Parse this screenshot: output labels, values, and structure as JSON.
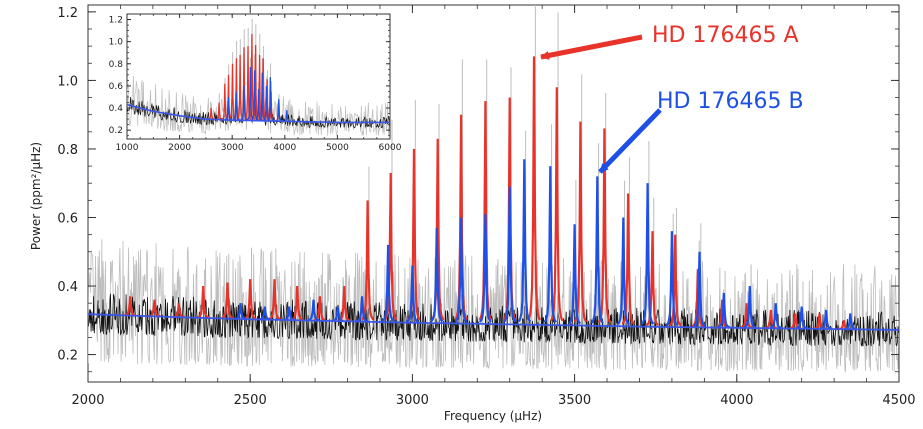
{
  "chart_data": [
    {
      "type": "line",
      "role": "main",
      "xlabel": "Frequency (μHz)",
      "ylabel": "Power (ppm²/μHz)",
      "xlim": [
        2000,
        4500
      ],
      "ylim": [
        0.12,
        1.22
      ],
      "xticks": [
        2000,
        2500,
        3000,
        3500,
        4000,
        4500
      ],
      "yticks": [
        0.2,
        0.4,
        0.6,
        0.8,
        1.0,
        1.2
      ],
      "ytick_labels": [
        "0.2",
        "0.4",
        "0.6",
        "0.8",
        "1.0",
        "1.2"
      ],
      "grid": false,
      "series": [
        {
          "name": "HD 176465 A",
          "color": "#e8332a",
          "x": [
            2130,
            2205,
            2280,
            2355,
            2430,
            2500,
            2575,
            2645,
            2715,
            2790,
            2862,
            2933,
            3005,
            3078,
            3150,
            3225,
            3300,
            3375,
            3445,
            3518,
            3592,
            3665,
            3740,
            3810,
            3880,
            3955,
            4030,
            4105,
            4180,
            4255,
            4330
          ],
          "values": [
            0.37,
            0.36,
            0.35,
            0.4,
            0.41,
            0.42,
            0.42,
            0.4,
            0.37,
            0.4,
            0.65,
            0.73,
            0.8,
            0.83,
            0.9,
            0.94,
            0.95,
            1.07,
            0.98,
            0.88,
            0.86,
            0.67,
            0.56,
            0.55,
            0.45,
            0.36,
            0.35,
            0.33,
            0.32,
            0.32,
            0.3
          ]
        },
        {
          "name": "HD 176465 B",
          "color": "#1e50e6",
          "x": [
            2470,
            2545,
            2620,
            2695,
            2770,
            2845,
            2925,
            3000,
            3075,
            3150,
            3225,
            3300,
            3345,
            3425,
            3500,
            3570,
            3650,
            3725,
            3800,
            3885,
            3960,
            4040,
            4120,
            4200,
            4275,
            4350
          ],
          "values": [
            0.35,
            0.34,
            0.34,
            0.36,
            0.34,
            0.37,
            0.52,
            0.46,
            0.57,
            0.6,
            0.61,
            0.69,
            0.77,
            0.75,
            0.58,
            0.72,
            0.6,
            0.7,
            0.56,
            0.5,
            0.38,
            0.4,
            0.35,
            0.34,
            0.33,
            0.32
          ]
        },
        {
          "name": "",
          "color": "#3a56e8",
          "role": "background-fit",
          "x": [
            2000,
            2250,
            2500,
            2750,
            3000,
            3250,
            3500,
            3750,
            4000,
            4250,
            4500
          ],
          "values": [
            0.318,
            0.31,
            0.303,
            0.298,
            0.293,
            0.289,
            0.285,
            0.281,
            0.278,
            0.275,
            0.272
          ]
        }
      ],
      "annotations": [
        {
          "text": "HD 176465 A",
          "color": "#e8332a",
          "points_to": [
            3375,
            1.07
          ]
        },
        {
          "text": "HD 176465 B",
          "color": "#1e50e6",
          "points_to": [
            3570,
            0.72
          ]
        }
      ]
    },
    {
      "type": "line",
      "role": "inset",
      "xlim": [
        1000,
        6000
      ],
      "ylim": [
        0.12,
        1.25
      ],
      "xticks": [
        1000,
        2000,
        3000,
        4000,
        5000,
        6000
      ],
      "yticks": [
        0.2,
        0.4,
        0.6,
        0.8,
        1.0,
        1.2
      ],
      "ytick_labels": [
        "0.2",
        "0.4",
        "0.6",
        "0.8",
        "1.0",
        "1.2"
      ],
      "series": [
        {
          "name": "HD 176465 A",
          "color": "#e8332a",
          "x": [
            2600,
            2750,
            2860,
            2930,
            3005,
            3080,
            3150,
            3225,
            3300,
            3375,
            3445,
            3520,
            3590,
            3665,
            3740,
            3880
          ],
          "values": [
            0.4,
            0.45,
            0.62,
            0.7,
            0.8,
            0.85,
            0.88,
            0.95,
            0.96,
            1.07,
            0.97,
            0.88,
            0.85,
            0.66,
            0.55,
            0.45
          ]
        },
        {
          "name": "HD 176465 B",
          "color": "#1e50e6",
          "x": [
            2925,
            3075,
            3225,
            3345,
            3425,
            3500,
            3570,
            3650,
            3725,
            3885,
            4040
          ],
          "values": [
            0.5,
            0.55,
            0.6,
            0.77,
            0.74,
            0.57,
            0.72,
            0.6,
            0.68,
            0.48,
            0.38
          ]
        },
        {
          "name": "",
          "color": "#3a56e8",
          "role": "background-fit",
          "x": [
            1000,
            1500,
            2000,
            2500,
            3000,
            4000,
            5000,
            6000
          ],
          "values": [
            0.43,
            0.37,
            0.33,
            0.3,
            0.29,
            0.28,
            0.27,
            0.27
          ]
        }
      ]
    }
  ]
}
